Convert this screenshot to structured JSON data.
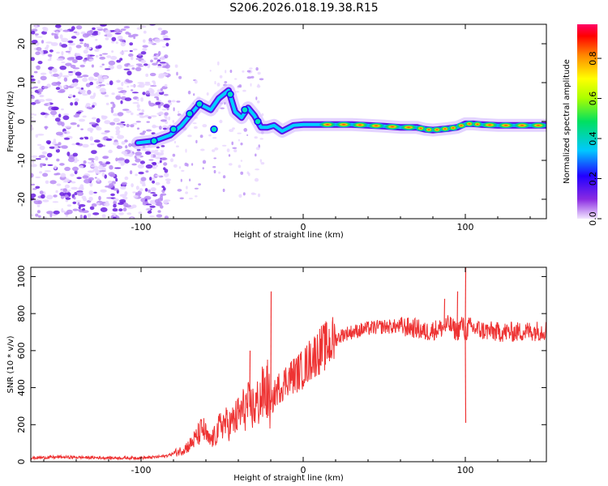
{
  "title": "S206.2026.018.19.38.R15",
  "chart_data": [
    {
      "type": "heatmap",
      "panel": "top",
      "xlabel": "Height of straight line (km)",
      "ylabel": "Frequency (Hz)",
      "xlim": [
        -168,
        150
      ],
      "ylim": [
        -25,
        25
      ],
      "xticks": [
        -100,
        0,
        100
      ],
      "yticks": [
        -20,
        -10,
        0,
        10,
        20
      ],
      "colorbar": {
        "label": "Normalized spectral amplitude",
        "range": [
          0.0,
          0.97
        ],
        "ticks": [
          0.0,
          0.2,
          0.4,
          0.6,
          0.8
        ]
      },
      "ridge": {
        "x": [
          -102,
          -92,
          -82,
          -75,
          -70,
          -64,
          -57,
          -52,
          -46,
          -42,
          -38,
          -34,
          -30,
          -26,
          -22,
          -18,
          -13,
          -6,
          0,
          10,
          20,
          30,
          40,
          50,
          60,
          70,
          75,
          80,
          85,
          90,
          95,
          100,
          105,
          110,
          120,
          130,
          140,
          150
        ],
        "freq": [
          -5.5,
          -5,
          -3.5,
          -1,
          1.5,
          4.5,
          3,
          6,
          8,
          2.5,
          1,
          3.5,
          1.5,
          -1.5,
          -1.5,
          -1,
          -2.5,
          -1,
          -0.8,
          -0.8,
          -0.8,
          -0.8,
          -1,
          -1.2,
          -1.5,
          -1.5,
          -2,
          -2.2,
          -2,
          -1.8,
          -1.5,
          -0.6,
          -0.6,
          -0.8,
          -1,
          -1,
          -1,
          -1
        ]
      }
    },
    {
      "type": "line",
      "panel": "bottom",
      "xlabel": "Height of straight line (km)",
      "ylabel": "SNR (10 * v/v)",
      "xlim": [
        -168,
        150
      ],
      "ylim": [
        0,
        1050
      ],
      "xticks": [
        -100,
        0,
        100
      ],
      "yticks": [
        0,
        200,
        400,
        600,
        800,
        1000
      ],
      "color": "#ee3333",
      "series": [
        {
          "name": "SNR",
          "x": [
            -168,
            -150,
            -130,
            -110,
            -95,
            -85,
            -80,
            -75,
            -70,
            -65,
            -62,
            -58,
            -55,
            -50,
            -45,
            -40,
            -35,
            -30,
            -25,
            -22,
            -20,
            -18,
            -15,
            -12,
            -10,
            -5,
            0,
            5,
            10,
            15,
            20,
            25,
            30,
            40,
            50,
            60,
            70,
            75,
            80,
            85,
            90,
            95,
            98,
            100,
            102,
            105,
            110,
            120,
            130,
            140,
            150
          ],
          "values": [
            20,
            25,
            22,
            20,
            22,
            30,
            45,
            60,
            90,
            140,
            180,
            110,
            130,
            210,
            200,
            250,
            300,
            290,
            360,
            390,
            280,
            360,
            400,
            420,
            450,
            470,
            500,
            560,
            600,
            630,
            660,
            690,
            700,
            720,
            730,
            730,
            720,
            700,
            710,
            720,
            740,
            700,
            750,
            690,
            730,
            720,
            710,
            700,
            700,
            705,
            710
          ]
        }
      ],
      "spikes": [
        {
          "x": -20,
          "value": 920
        },
        {
          "x": -33,
          "value": 600
        },
        {
          "x": 95,
          "value": 920
        },
        {
          "x": 100,
          "value": 1050
        },
        {
          "x": 100,
          "value": 210
        },
        {
          "x": 87,
          "value": 880
        }
      ]
    }
  ]
}
